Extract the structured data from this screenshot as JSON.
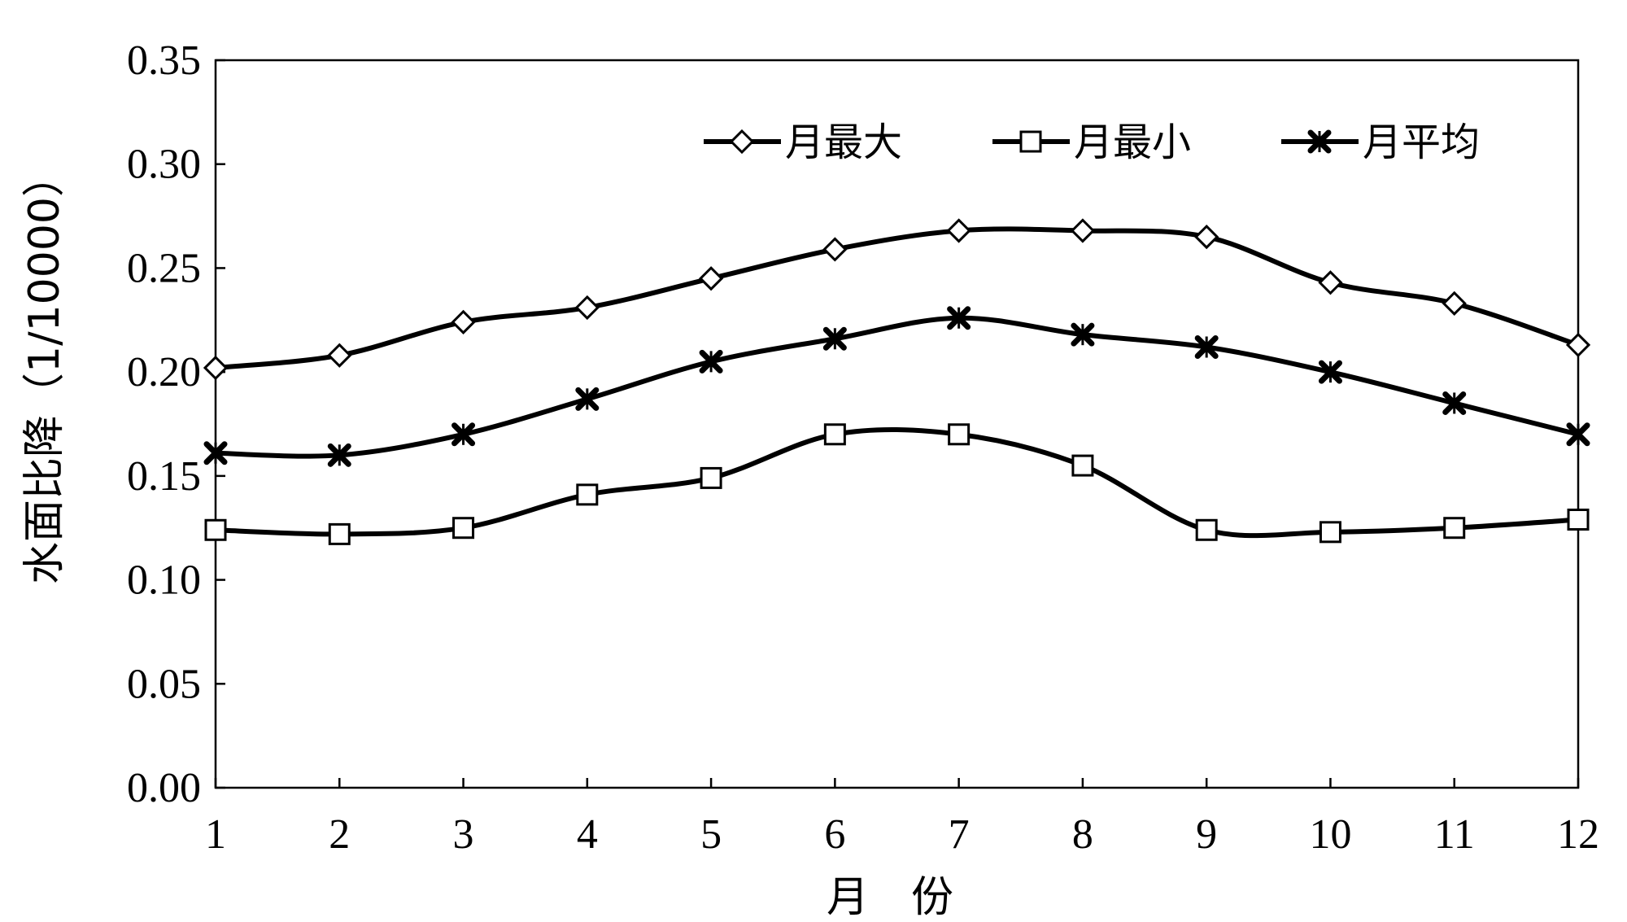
{
  "chart_data": {
    "type": "line",
    "x": [
      1,
      2,
      3,
      4,
      5,
      6,
      7,
      8,
      9,
      10,
      11,
      12
    ],
    "xlabel": "月　份",
    "ylabel": "水面比降（1/10000）",
    "ylim": [
      0,
      0.35
    ],
    "yticks": [
      "0.00",
      "0.05",
      "0.10",
      "0.15",
      "0.20",
      "0.25",
      "0.30",
      "0.35"
    ],
    "xticks": [
      "1",
      "2",
      "3",
      "4",
      "5",
      "6",
      "7",
      "8",
      "9",
      "10",
      "11",
      "12"
    ],
    "grid": false,
    "legend_position": "top-right",
    "line_color": "#000000",
    "series": [
      {
        "name": "月最大",
        "marker": "diamond",
        "values": [
          0.202,
          0.208,
          0.224,
          0.231,
          0.245,
          0.259,
          0.268,
          0.268,
          0.265,
          0.243,
          0.233,
          0.213
        ]
      },
      {
        "name": "月最小",
        "marker": "square",
        "values": [
          0.124,
          0.122,
          0.125,
          0.141,
          0.149,
          0.17,
          0.17,
          0.155,
          0.124,
          0.123,
          0.125,
          0.129
        ]
      },
      {
        "name": "月平均",
        "marker": "star",
        "values": [
          0.161,
          0.16,
          0.17,
          0.187,
          0.205,
          0.216,
          0.226,
          0.218,
          0.212,
          0.2,
          0.185,
          0.17
        ]
      }
    ]
  }
}
